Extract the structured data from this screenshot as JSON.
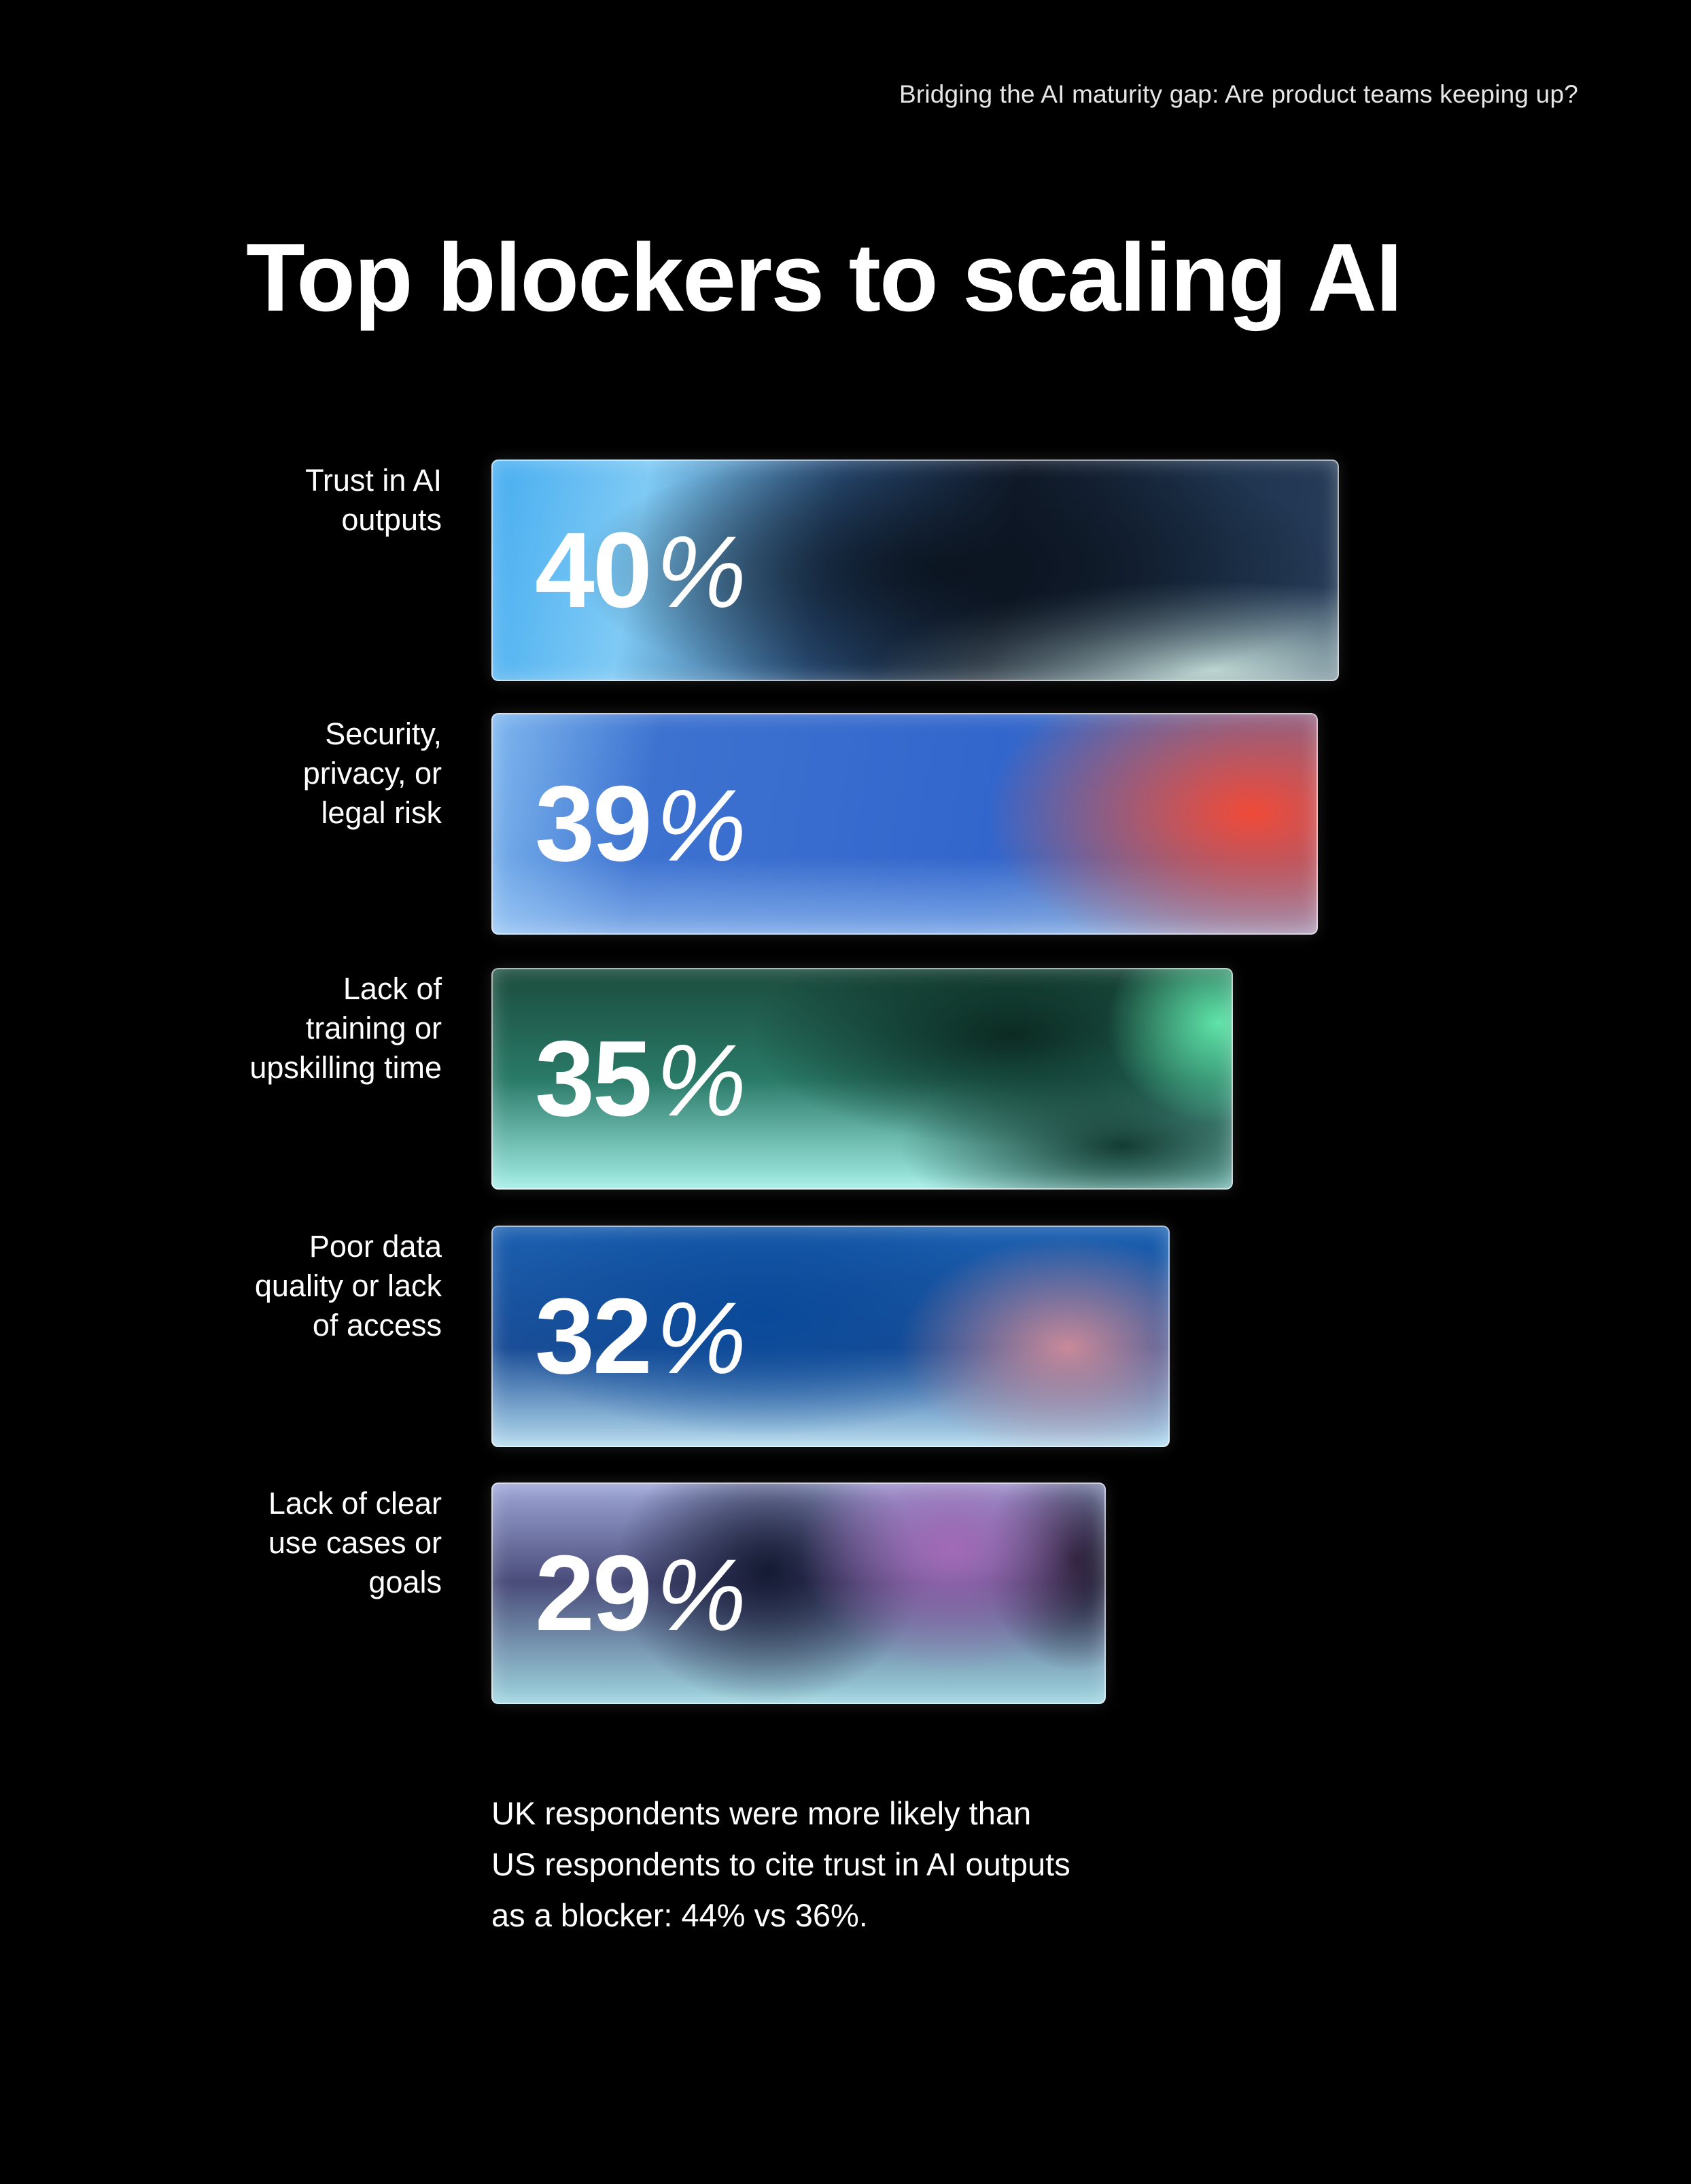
{
  "header": {
    "report_title": "Bridging the AI maturity gap: Are product teams keeping up?"
  },
  "chart_data": {
    "type": "bar",
    "orientation": "horizontal",
    "title": "Top blockers to scaling AI",
    "categories": [
      "Trust in AI\noutputs",
      "Security,\nprivacy, or\nlegal risk",
      "Lack of\ntraining or\nupskilling time",
      "Poor data\nquality or lack\nof access",
      "Lack of clear\nuse cases or\ngoals"
    ],
    "values": [
      40,
      39,
      35,
      32,
      29
    ],
    "value_labels": [
      "40",
      "39",
      "35",
      "32",
      "29"
    ],
    "unit": "%",
    "xlim": [
      0,
      50
    ],
    "grid": false,
    "legend": "none"
  },
  "footnote": {
    "line1": "UK respondents were more likely than",
    "line2": "US respondents to cite trust in AI outputs",
    "line3": "as a blocker: 44% vs 36%."
  },
  "colors": {
    "background": "#000000",
    "text": "#ffffff"
  }
}
